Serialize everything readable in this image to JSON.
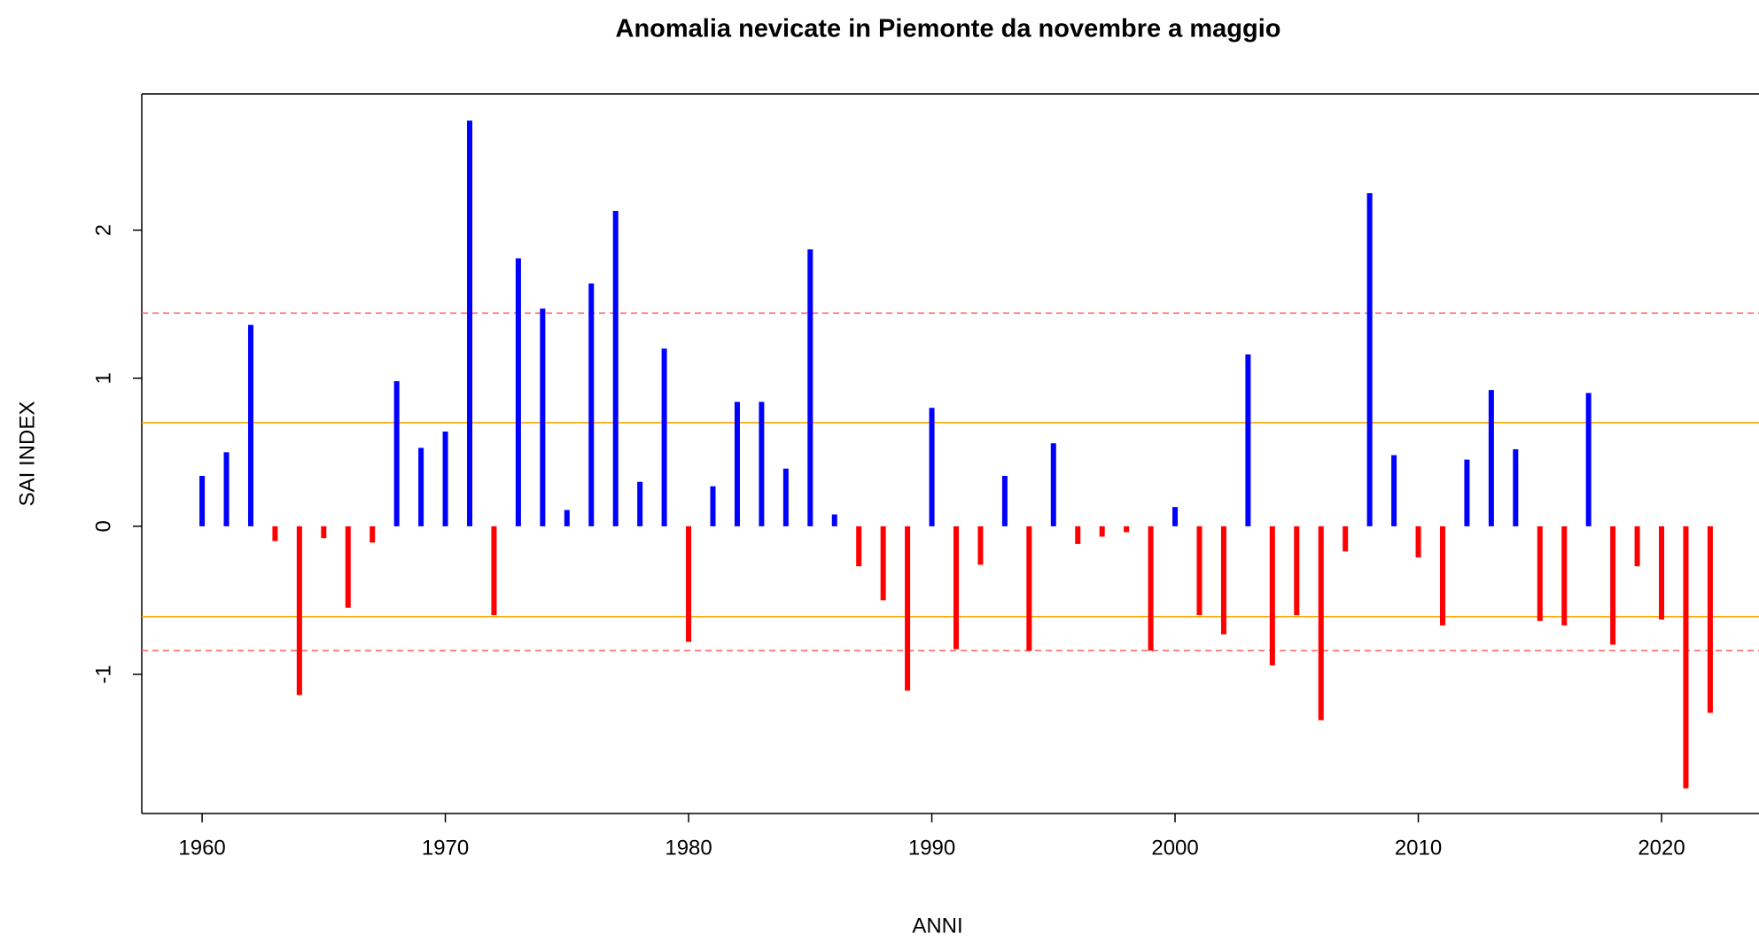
{
  "chart_data": {
    "type": "bar",
    "title": "Anomalia nevicate in Piemonte da novembre a maggio",
    "x_label": "ANNI",
    "y_label": "SAI INDEX",
    "x": [
      1960,
      1961,
      1962,
      1963,
      1964,
      1965,
      1966,
      1967,
      1968,
      1969,
      1970,
      1971,
      1972,
      1973,
      1974,
      1975,
      1976,
      1977,
      1978,
      1979,
      1980,
      1981,
      1982,
      1983,
      1984,
      1985,
      1986,
      1987,
      1988,
      1989,
      1990,
      1991,
      1992,
      1993,
      1994,
      1995,
      1996,
      1997,
      1998,
      1999,
      2000,
      2001,
      2002,
      2003,
      2004,
      2005,
      2006,
      2007,
      2008,
      2009,
      2010,
      2011,
      2012,
      2013,
      2014,
      2015,
      2016,
      2017,
      2018,
      2019,
      2020,
      2021,
      2022
    ],
    "values": [
      0.34,
      0.5,
      1.36,
      -0.1,
      -1.14,
      -0.08,
      -0.55,
      -0.11,
      0.98,
      0.53,
      0.64,
      2.74,
      -0.6,
      1.81,
      1.47,
      0.11,
      1.64,
      2.13,
      0.3,
      1.2,
      -0.78,
      0.27,
      0.84,
      0.84,
      0.39,
      1.87,
      0.08,
      -0.27,
      -0.5,
      -1.11,
      0.8,
      -0.83,
      -0.26,
      0.34,
      -0.84,
      0.56,
      -0.12,
      -0.07,
      -0.04,
      -0.84,
      0.13,
      -0.6,
      -0.73,
      1.16,
      -0.94,
      -0.6,
      -1.31,
      -0.17,
      2.25,
      0.48,
      -0.21,
      -0.67,
      0.45,
      0.92,
      0.52,
      -0.64,
      -0.67,
      0.9,
      -0.8,
      -0.27,
      -0.63,
      -1.77,
      -1.26
    ],
    "positive_color": "#0000ff",
    "negative_color": "#ff0000",
    "reference_lines": [
      {
        "value": 0.7,
        "color": "#ffa500",
        "dashed": false
      },
      {
        "value": -0.61,
        "color": "#ffa500",
        "dashed": false
      },
      {
        "value": 1.44,
        "color": "#ff6a6a",
        "dashed": true
      },
      {
        "value": -0.84,
        "color": "#ff6a6a",
        "dashed": true
      }
    ],
    "xlim": [
      1957.52,
      2024.48
    ],
    "xticks": [
      1960,
      1970,
      1980,
      1990,
      2000,
      2010,
      2020
    ],
    "ylim": [
      -1.94,
      2.92
    ],
    "yticks": [
      -1,
      0,
      1,
      2
    ]
  }
}
